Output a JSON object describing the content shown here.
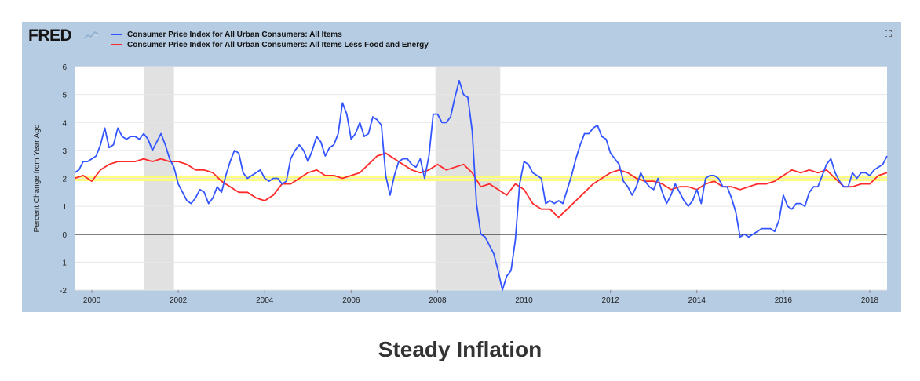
{
  "brand": {
    "logo_text": "FRED"
  },
  "caption": "Steady Inflation",
  "colors": {
    "frame": "#b5cce3",
    "plot_bg": "#ffffff",
    "recession": "#e1e1e1",
    "highlight_band": "#ffff66",
    "zero_line": "#000000"
  },
  "icons": {
    "logo_mark": "line-chart-icon",
    "fullscreen": "fullscreen-icon"
  },
  "chart_data": {
    "type": "line",
    "title": "",
    "xlabel": "",
    "ylabel": "Percent Change from Year Ago",
    "xlim": [
      1999.6,
      2018.4
    ],
    "ylim": [
      -2,
      6
    ],
    "xticks": [
      "2000",
      "2002",
      "2004",
      "2006",
      "2008",
      "2010",
      "2012",
      "2014",
      "2016",
      "2018"
    ],
    "yticks": [
      "-2",
      "-1",
      "0",
      "1",
      "2",
      "3",
      "4",
      "5",
      "6"
    ],
    "grid": "horizontal",
    "legend_position": "top-left",
    "recessions": [
      [
        2001.2,
        2001.9
      ],
      [
        2007.95,
        2009.45
      ]
    ],
    "highlight_band": [
      1.9,
      2.1
    ],
    "reference_line": 0,
    "series": [
      {
        "name": "Consumer Price Index for All Urban Consumers: All Items",
        "color": "#3355ff",
        "points": [
          [
            1999.6,
            2.2
          ],
          [
            1999.7,
            2.3
          ],
          [
            1999.8,
            2.6
          ],
          [
            1999.9,
            2.6
          ],
          [
            2000.0,
            2.7
          ],
          [
            2000.1,
            2.8
          ],
          [
            2000.2,
            3.2
          ],
          [
            2000.3,
            3.8
          ],
          [
            2000.4,
            3.1
          ],
          [
            2000.5,
            3.2
          ],
          [
            2000.6,
            3.8
          ],
          [
            2000.7,
            3.5
          ],
          [
            2000.8,
            3.4
          ],
          [
            2000.9,
            3.5
          ],
          [
            2001.0,
            3.5
          ],
          [
            2001.1,
            3.4
          ],
          [
            2001.2,
            3.6
          ],
          [
            2001.3,
            3.4
          ],
          [
            2001.4,
            3.0
          ],
          [
            2001.5,
            3.3
          ],
          [
            2001.6,
            3.6
          ],
          [
            2001.7,
            3.2
          ],
          [
            2001.8,
            2.7
          ],
          [
            2001.9,
            2.4
          ],
          [
            2002.0,
            1.8
          ],
          [
            2002.1,
            1.5
          ],
          [
            2002.2,
            1.2
          ],
          [
            2002.3,
            1.1
          ],
          [
            2002.4,
            1.3
          ],
          [
            2002.5,
            1.6
          ],
          [
            2002.6,
            1.5
          ],
          [
            2002.7,
            1.1
          ],
          [
            2002.8,
            1.3
          ],
          [
            2002.9,
            1.7
          ],
          [
            2003.0,
            1.5
          ],
          [
            2003.1,
            2.1
          ],
          [
            2003.2,
            2.6
          ],
          [
            2003.3,
            3.0
          ],
          [
            2003.4,
            2.9
          ],
          [
            2003.5,
            2.2
          ],
          [
            2003.6,
            2.0
          ],
          [
            2003.7,
            2.1
          ],
          [
            2003.8,
            2.2
          ],
          [
            2003.9,
            2.3
          ],
          [
            2004.0,
            2.0
          ],
          [
            2004.1,
            1.9
          ],
          [
            2004.2,
            2.0
          ],
          [
            2004.3,
            2.0
          ],
          [
            2004.4,
            1.8
          ],
          [
            2004.5,
            1.9
          ],
          [
            2004.6,
            2.7
          ],
          [
            2004.7,
            3.0
          ],
          [
            2004.8,
            3.2
          ],
          [
            2004.9,
            3.0
          ],
          [
            2005.0,
            2.6
          ],
          [
            2005.1,
            3.0
          ],
          [
            2005.2,
            3.5
          ],
          [
            2005.3,
            3.3
          ],
          [
            2005.4,
            2.8
          ],
          [
            2005.5,
            3.1
          ],
          [
            2005.6,
            3.2
          ],
          [
            2005.7,
            3.6
          ],
          [
            2005.8,
            4.7
          ],
          [
            2005.9,
            4.3
          ],
          [
            2006.0,
            3.4
          ],
          [
            2006.1,
            3.6
          ],
          [
            2006.2,
            4.0
          ],
          [
            2006.3,
            3.5
          ],
          [
            2006.4,
            3.6
          ],
          [
            2006.5,
            4.2
          ],
          [
            2006.6,
            4.1
          ],
          [
            2006.7,
            3.9
          ],
          [
            2006.8,
            2.1
          ],
          [
            2006.9,
            1.4
          ],
          [
            2007.0,
            2.1
          ],
          [
            2007.1,
            2.6
          ],
          [
            2007.2,
            2.7
          ],
          [
            2007.3,
            2.7
          ],
          [
            2007.4,
            2.5
          ],
          [
            2007.5,
            2.4
          ],
          [
            2007.6,
            2.7
          ],
          [
            2007.7,
            2.0
          ],
          [
            2007.8,
            2.8
          ],
          [
            2007.9,
            4.3
          ],
          [
            2008.0,
            4.3
          ],
          [
            2008.1,
            4.0
          ],
          [
            2008.2,
            4.0
          ],
          [
            2008.3,
            4.2
          ],
          [
            2008.4,
            4.9
          ],
          [
            2008.5,
            5.5
          ],
          [
            2008.6,
            5.0
          ],
          [
            2008.7,
            4.9
          ],
          [
            2008.8,
            3.7
          ],
          [
            2008.9,
            1.1
          ],
          [
            2009.0,
            0.0
          ],
          [
            2009.1,
            -0.1
          ],
          [
            2009.2,
            -0.4
          ],
          [
            2009.3,
            -0.7
          ],
          [
            2009.4,
            -1.3
          ],
          [
            2009.5,
            -2.0
          ],
          [
            2009.6,
            -1.5
          ],
          [
            2009.7,
            -1.3
          ],
          [
            2009.8,
            -0.2
          ],
          [
            2009.9,
            1.8
          ],
          [
            2010.0,
            2.6
          ],
          [
            2010.1,
            2.5
          ],
          [
            2010.2,
            2.2
          ],
          [
            2010.3,
            2.1
          ],
          [
            2010.4,
            2.0
          ],
          [
            2010.5,
            1.1
          ],
          [
            2010.6,
            1.2
          ],
          [
            2010.7,
            1.1
          ],
          [
            2010.8,
            1.2
          ],
          [
            2010.9,
            1.1
          ],
          [
            2011.0,
            1.6
          ],
          [
            2011.1,
            2.1
          ],
          [
            2011.2,
            2.7
          ],
          [
            2011.3,
            3.2
          ],
          [
            2011.4,
            3.6
          ],
          [
            2011.5,
            3.6
          ],
          [
            2011.6,
            3.8
          ],
          [
            2011.7,
            3.9
          ],
          [
            2011.8,
            3.5
          ],
          [
            2011.9,
            3.4
          ],
          [
            2012.0,
            2.9
          ],
          [
            2012.1,
            2.7
          ],
          [
            2012.2,
            2.5
          ],
          [
            2012.3,
            1.9
          ],
          [
            2012.4,
            1.7
          ],
          [
            2012.5,
            1.4
          ],
          [
            2012.6,
            1.7
          ],
          [
            2012.7,
            2.2
          ],
          [
            2012.8,
            1.9
          ],
          [
            2012.9,
            1.7
          ],
          [
            2013.0,
            1.6
          ],
          [
            2013.1,
            2.0
          ],
          [
            2013.2,
            1.5
          ],
          [
            2013.3,
            1.1
          ],
          [
            2013.4,
            1.4
          ],
          [
            2013.5,
            1.8
          ],
          [
            2013.6,
            1.5
          ],
          [
            2013.7,
            1.2
          ],
          [
            2013.8,
            1.0
          ],
          [
            2013.9,
            1.2
          ],
          [
            2014.0,
            1.6
          ],
          [
            2014.1,
            1.1
          ],
          [
            2014.2,
            2.0
          ],
          [
            2014.3,
            2.1
          ],
          [
            2014.4,
            2.1
          ],
          [
            2014.5,
            2.0
          ],
          [
            2014.6,
            1.7
          ],
          [
            2014.7,
            1.7
          ],
          [
            2014.8,
            1.3
          ],
          [
            2014.9,
            0.8
          ],
          [
            2015.0,
            -0.1
          ],
          [
            2015.1,
            0.0
          ],
          [
            2015.2,
            -0.1
          ],
          [
            2015.3,
            0.0
          ],
          [
            2015.4,
            0.1
          ],
          [
            2015.5,
            0.2
          ],
          [
            2015.6,
            0.2
          ],
          [
            2015.7,
            0.2
          ],
          [
            2015.8,
            0.1
          ],
          [
            2015.9,
            0.5
          ],
          [
            2016.0,
            1.4
          ],
          [
            2016.1,
            1.0
          ],
          [
            2016.2,
            0.9
          ],
          [
            2016.3,
            1.1
          ],
          [
            2016.4,
            1.1
          ],
          [
            2016.5,
            1.0
          ],
          [
            2016.6,
            1.5
          ],
          [
            2016.7,
            1.7
          ],
          [
            2016.8,
            1.7
          ],
          [
            2016.9,
            2.1
          ],
          [
            2017.0,
            2.5
          ],
          [
            2017.1,
            2.7
          ],
          [
            2017.2,
            2.2
          ],
          [
            2017.3,
            1.9
          ],
          [
            2017.4,
            1.7
          ],
          [
            2017.5,
            1.7
          ],
          [
            2017.6,
            2.2
          ],
          [
            2017.7,
            2.0
          ],
          [
            2017.8,
            2.2
          ],
          [
            2017.9,
            2.2
          ],
          [
            2018.0,
            2.1
          ],
          [
            2018.1,
            2.3
          ],
          [
            2018.2,
            2.4
          ],
          [
            2018.3,
            2.5
          ],
          [
            2018.4,
            2.8
          ]
        ]
      },
      {
        "name": "Consumer Price Index for All Urban Consumers: All Items Less Food and Energy",
        "color": "#ff2a2a",
        "points": [
          [
            1999.6,
            2.0
          ],
          [
            1999.8,
            2.1
          ],
          [
            2000.0,
            1.9
          ],
          [
            2000.2,
            2.3
          ],
          [
            2000.4,
            2.5
          ],
          [
            2000.6,
            2.6
          ],
          [
            2000.8,
            2.6
          ],
          [
            2001.0,
            2.6
          ],
          [
            2001.2,
            2.7
          ],
          [
            2001.4,
            2.6
          ],
          [
            2001.6,
            2.7
          ],
          [
            2001.8,
            2.6
          ],
          [
            2002.0,
            2.6
          ],
          [
            2002.2,
            2.5
          ],
          [
            2002.4,
            2.3
          ],
          [
            2002.6,
            2.3
          ],
          [
            2002.8,
            2.2
          ],
          [
            2003.0,
            1.9
          ],
          [
            2003.2,
            1.7
          ],
          [
            2003.4,
            1.5
          ],
          [
            2003.6,
            1.5
          ],
          [
            2003.8,
            1.3
          ],
          [
            2004.0,
            1.2
          ],
          [
            2004.2,
            1.4
          ],
          [
            2004.4,
            1.8
          ],
          [
            2004.6,
            1.8
          ],
          [
            2004.8,
            2.0
          ],
          [
            2005.0,
            2.2
          ],
          [
            2005.2,
            2.3
          ],
          [
            2005.4,
            2.1
          ],
          [
            2005.6,
            2.1
          ],
          [
            2005.8,
            2.0
          ],
          [
            2006.0,
            2.1
          ],
          [
            2006.2,
            2.2
          ],
          [
            2006.4,
            2.5
          ],
          [
            2006.6,
            2.8
          ],
          [
            2006.8,
            2.9
          ],
          [
            2007.0,
            2.7
          ],
          [
            2007.2,
            2.5
          ],
          [
            2007.4,
            2.3
          ],
          [
            2007.6,
            2.2
          ],
          [
            2007.8,
            2.3
          ],
          [
            2008.0,
            2.5
          ],
          [
            2008.2,
            2.3
          ],
          [
            2008.4,
            2.4
          ],
          [
            2008.6,
            2.5
          ],
          [
            2008.8,
            2.2
          ],
          [
            2009.0,
            1.7
          ],
          [
            2009.2,
            1.8
          ],
          [
            2009.4,
            1.6
          ],
          [
            2009.6,
            1.4
          ],
          [
            2009.8,
            1.8
          ],
          [
            2010.0,
            1.6
          ],
          [
            2010.2,
            1.1
          ],
          [
            2010.4,
            0.9
          ],
          [
            2010.6,
            0.9
          ],
          [
            2010.8,
            0.6
          ],
          [
            2011.0,
            0.9
          ],
          [
            2011.2,
            1.2
          ],
          [
            2011.4,
            1.5
          ],
          [
            2011.6,
            1.8
          ],
          [
            2011.8,
            2.0
          ],
          [
            2012.0,
            2.2
          ],
          [
            2012.2,
            2.3
          ],
          [
            2012.4,
            2.2
          ],
          [
            2012.6,
            2.0
          ],
          [
            2012.8,
            1.9
          ],
          [
            2013.0,
            1.9
          ],
          [
            2013.2,
            1.8
          ],
          [
            2013.4,
            1.6
          ],
          [
            2013.6,
            1.7
          ],
          [
            2013.8,
            1.7
          ],
          [
            2014.0,
            1.6
          ],
          [
            2014.2,
            1.8
          ],
          [
            2014.4,
            1.9
          ],
          [
            2014.6,
            1.7
          ],
          [
            2014.8,
            1.7
          ],
          [
            2015.0,
            1.6
          ],
          [
            2015.2,
            1.7
          ],
          [
            2015.4,
            1.8
          ],
          [
            2015.6,
            1.8
          ],
          [
            2015.8,
            1.9
          ],
          [
            2016.0,
            2.1
          ],
          [
            2016.2,
            2.3
          ],
          [
            2016.4,
            2.2
          ],
          [
            2016.6,
            2.3
          ],
          [
            2016.8,
            2.2
          ],
          [
            2017.0,
            2.3
          ],
          [
            2017.2,
            2.0
          ],
          [
            2017.4,
            1.7
          ],
          [
            2017.6,
            1.7
          ],
          [
            2017.8,
            1.8
          ],
          [
            2018.0,
            1.8
          ],
          [
            2018.2,
            2.1
          ],
          [
            2018.4,
            2.2
          ]
        ]
      }
    ]
  }
}
